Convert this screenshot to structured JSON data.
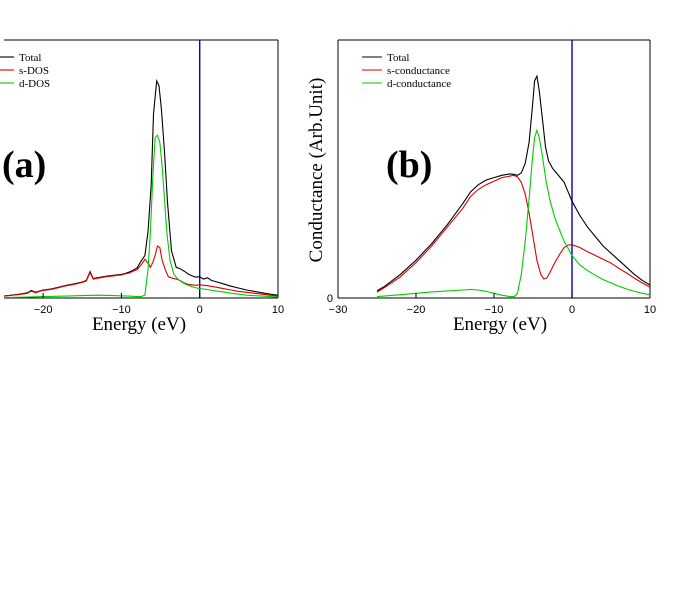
{
  "chart_data": [
    {
      "type": "line",
      "panel_label": "(a)",
      "xlabel": "Energy (eV)",
      "ylabel": "",
      "xlim": [
        -25,
        10
      ],
      "ylim": [
        0,
        100
      ],
      "xticks": [
        "-20",
        "-10",
        "0",
        "10"
      ],
      "yticks": [],
      "fermi_line": {
        "x": 0,
        "color": "#0000cc"
      },
      "legend_position": "top-left",
      "series": [
        {
          "name": "Total",
          "color": "#000000",
          "points": [
            [
              -25,
              0.8
            ],
            [
              -23,
              1.6
            ],
            [
              -22,
              2.2
            ],
            [
              -21.5,
              3.2
            ],
            [
              -21,
              2.4
            ],
            [
              -20,
              3.4
            ],
            [
              -19,
              3.8
            ],
            [
              -18,
              4.6
            ],
            [
              -17,
              5.4
            ],
            [
              -16,
              6
            ],
            [
              -15,
              6.8
            ],
            [
              -14.5,
              7.4
            ],
            [
              -14,
              11.2
            ],
            [
              -13.6,
              8.2
            ],
            [
              -13,
              8.6
            ],
            [
              -12,
              9.2
            ],
            [
              -11,
              9.6
            ],
            [
              -10,
              10
            ],
            [
              -9.5,
              10.4
            ],
            [
              -9,
              11
            ],
            [
              -8.5,
              11.8
            ],
            [
              -8,
              12.8
            ],
            [
              -7.5,
              15.6
            ],
            [
              -7,
              18
            ],
            [
              -6.6,
              28
            ],
            [
              -6.2,
              48
            ],
            [
              -5.9,
              78
            ],
            [
              -5.5,
              92
            ],
            [
              -5.2,
              90
            ],
            [
              -4.9,
              80
            ],
            [
              -4.5,
              62
            ],
            [
              -4.1,
              40
            ],
            [
              -3.6,
              20
            ],
            [
              -3,
              13
            ],
            [
              -2.5,
              12.4
            ],
            [
              -2,
              11.4
            ],
            [
              -1.5,
              10.2
            ],
            [
              -1,
              9.4
            ],
            [
              -0.5,
              8.8
            ],
            [
              0,
              9
            ],
            [
              0.5,
              8
            ],
            [
              1,
              8.6
            ],
            [
              1.5,
              7.4
            ],
            [
              2,
              7
            ],
            [
              3,
              6
            ],
            [
              4,
              5
            ],
            [
              5,
              4.2
            ],
            [
              6,
              3.4
            ],
            [
              7,
              2.8
            ],
            [
              8,
              2.2
            ],
            [
              9,
              1.6
            ],
            [
              10,
              1.2
            ]
          ]
        },
        {
          "name": "s-DOS",
          "color": "#dd0000",
          "points": [
            [
              -25,
              0.8
            ],
            [
              -23,
              1.5
            ],
            [
              -22,
              2
            ],
            [
              -21.5,
              3
            ],
            [
              -21,
              2.2
            ],
            [
              -20,
              3.2
            ],
            [
              -19,
              3.6
            ],
            [
              -18,
              4.4
            ],
            [
              -17,
              5.2
            ],
            [
              -16,
              5.8
            ],
            [
              -15,
              6.6
            ],
            [
              -14.5,
              7.2
            ],
            [
              -14,
              10.8
            ],
            [
              -13.6,
              8
            ],
            [
              -13,
              8.4
            ],
            [
              -12,
              9
            ],
            [
              -11,
              9.4
            ],
            [
              -10,
              9.8
            ],
            [
              -9.5,
              10.2
            ],
            [
              -9,
              10.6
            ],
            [
              -8.5,
              11.4
            ],
            [
              -8,
              12
            ],
            [
              -7.5,
              14
            ],
            [
              -7,
              16.4
            ],
            [
              -6.6,
              14.8
            ],
            [
              -6.3,
              13
            ],
            [
              -6,
              15
            ],
            [
              -5.7,
              18
            ],
            [
              -5.4,
              22
            ],
            [
              -5.1,
              21.4
            ],
            [
              -4.8,
              16
            ],
            [
              -4.4,
              12
            ],
            [
              -4,
              9
            ],
            [
              -3.5,
              8.4
            ],
            [
              -3,
              8
            ],
            [
              -2.5,
              7.4
            ],
            [
              -2,
              6.4
            ],
            [
              -1.5,
              5.8
            ],
            [
              -1,
              5.6
            ],
            [
              -0.5,
              5.4
            ],
            [
              0,
              5.6
            ],
            [
              1,
              5.2
            ],
            [
              2,
              4.6
            ],
            [
              3,
              4
            ],
            [
              4,
              3.4
            ],
            [
              5,
              2.8
            ],
            [
              6,
              2.4
            ],
            [
              7,
              2
            ],
            [
              8,
              1.6
            ],
            [
              9,
              1.2
            ],
            [
              10,
              0.8
            ]
          ]
        },
        {
          "name": "d-DOS",
          "color": "#00cc00",
          "points": [
            [
              -25,
              0.2
            ],
            [
              -22,
              0.4
            ],
            [
              -20,
              0.6
            ],
            [
              -17,
              0.8
            ],
            [
              -15,
              1
            ],
            [
              -13,
              1.2
            ],
            [
              -11,
              1
            ],
            [
              -9,
              0.8
            ],
            [
              -8,
              0.6
            ],
            [
              -7.5,
              0.6
            ],
            [
              -7,
              1.2
            ],
            [
              -6.6,
              12
            ],
            [
              -6.3,
              28
            ],
            [
              -6,
              50
            ],
            [
              -5.7,
              68
            ],
            [
              -5.4,
              69
            ],
            [
              -5.1,
              66
            ],
            [
              -4.8,
              56
            ],
            [
              -4.5,
              42
            ],
            [
              -4.2,
              28
            ],
            [
              -3.8,
              16
            ],
            [
              -3.3,
              10
            ],
            [
              -2.8,
              8
            ],
            [
              -2.3,
              6.8
            ],
            [
              -1.8,
              5.8
            ],
            [
              -1.3,
              5.2
            ],
            [
              -0.8,
              4.6
            ],
            [
              -0.3,
              4.2
            ],
            [
              0,
              4
            ],
            [
              1,
              3.6
            ],
            [
              2,
              3
            ],
            [
              3,
              2.6
            ],
            [
              4,
              2
            ],
            [
              5,
              1.6
            ],
            [
              6,
              1.2
            ],
            [
              8,
              0.8
            ],
            [
              10,
              0.4
            ]
          ]
        }
      ]
    },
    {
      "type": "line",
      "panel_label": "(b)",
      "xlabel": "Energy (eV)",
      "ylabel": "Conductance (Arb.Unit)",
      "xlim": [
        -30,
        10
      ],
      "ylim": [
        0,
        100
      ],
      "xticks": [
        "-30",
        "-20",
        "-10",
        "0",
        "10"
      ],
      "yticks": [
        "0"
      ],
      "fermi_line": {
        "x": 0,
        "color": "#0000cc"
      },
      "legend_position": "top-left",
      "series": [
        {
          "name": "Total",
          "color": "#000000",
          "points": [
            [
              -25,
              3
            ],
            [
              -24,
              5
            ],
            [
              -22,
              10
            ],
            [
              -20,
              16
            ],
            [
              -18,
              23
            ],
            [
              -16,
              31
            ],
            [
              -14,
              40
            ],
            [
              -13,
              45
            ],
            [
              -12,
              48
            ],
            [
              -11,
              50
            ],
            [
              -10,
              51
            ],
            [
              -9,
              52
            ],
            [
              -8,
              52.6
            ],
            [
              -7.5,
              52.4
            ],
            [
              -7,
              52
            ],
            [
              -6.5,
              53
            ],
            [
              -6,
              57
            ],
            [
              -5.5,
              66
            ],
            [
              -5.1,
              80
            ],
            [
              -4.8,
              92
            ],
            [
              -4.5,
              94
            ],
            [
              -4.2,
              88
            ],
            [
              -3.8,
              76
            ],
            [
              -3.4,
              64
            ],
            [
              -3,
              58
            ],
            [
              -2.5,
              55
            ],
            [
              -2,
              53
            ],
            [
              -1.5,
              51
            ],
            [
              -1,
              49
            ],
            [
              -0.5,
              45
            ],
            [
              0,
              41
            ],
            [
              1,
              35
            ],
            [
              2,
              30
            ],
            [
              3,
              26
            ],
            [
              4,
              22
            ],
            [
              5,
              19
            ],
            [
              6,
              16
            ],
            [
              7,
              13
            ],
            [
              8,
              10
            ],
            [
              9,
              7.5
            ],
            [
              10,
              5.5
            ]
          ]
        },
        {
          "name": "s-conductance",
          "color": "#dd0000",
          "points": [
            [
              -25,
              2.5
            ],
            [
              -24,
              4.5
            ],
            [
              -22,
              9
            ],
            [
              -20,
              15
            ],
            [
              -18,
              22
            ],
            [
              -16,
              30
            ],
            [
              -14,
              38
            ],
            [
              -13,
              43
            ],
            [
              -12,
              46
            ],
            [
              -11,
              48
            ],
            [
              -10,
              49.5
            ],
            [
              -9,
              51
            ],
            [
              -8,
              51.6
            ],
            [
              -7.5,
              52
            ],
            [
              -7,
              51.4
            ],
            [
              -6.5,
              49
            ],
            [
              -6,
              44
            ],
            [
              -5.5,
              36
            ],
            [
              -5,
              26
            ],
            [
              -4.5,
              16
            ],
            [
              -4,
              10
            ],
            [
              -3.6,
              8
            ],
            [
              -3.2,
              8.6
            ],
            [
              -2.8,
              11
            ],
            [
              -2.2,
              15
            ],
            [
              -1.5,
              19
            ],
            [
              -1,
              21.4
            ],
            [
              -0.5,
              22.4
            ],
            [
              0,
              22.6
            ],
            [
              1,
              21.4
            ],
            [
              2,
              19.6
            ],
            [
              3,
              18
            ],
            [
              4,
              16.4
            ],
            [
              5,
              14.8
            ],
            [
              6,
              12.6
            ],
            [
              7,
              10.6
            ],
            [
              8,
              8.4
            ],
            [
              9,
              6.4
            ],
            [
              10,
              4.6
            ]
          ]
        },
        {
          "name": "d-conductance",
          "color": "#00cc00",
          "points": [
            [
              -25,
              0.6
            ],
            [
              -22,
              1.4
            ],
            [
              -20,
              2
            ],
            [
              -18,
              2.6
            ],
            [
              -16,
              3
            ],
            [
              -14,
              3.4
            ],
            [
              -13,
              3.6
            ],
            [
              -12,
              3.4
            ],
            [
              -11,
              2.8
            ],
            [
              -10,
              2
            ],
            [
              -9,
              1.2
            ],
            [
              -8,
              0.6
            ],
            [
              -7.4,
              0.6
            ],
            [
              -7,
              2
            ],
            [
              -6.5,
              10
            ],
            [
              -6,
              24
            ],
            [
              -5.5,
              42
            ],
            [
              -5.1,
              58
            ],
            [
              -4.8,
              68
            ],
            [
              -4.5,
              71
            ],
            [
              -4.2,
              68
            ],
            [
              -3.8,
              60
            ],
            [
              -3.3,
              49
            ],
            [
              -2.8,
              41
            ],
            [
              -2.2,
              34
            ],
            [
              -1.5,
              28
            ],
            [
              -1,
              24
            ],
            [
              -0.5,
              21
            ],
            [
              0,
              18
            ],
            [
              1,
              14
            ],
            [
              2,
              11.6
            ],
            [
              3,
              9.6
            ],
            [
              4,
              7.8
            ],
            [
              5,
              6.4
            ],
            [
              6,
              5
            ],
            [
              7,
              3.8
            ],
            [
              8,
              2.8
            ],
            [
              9,
              2
            ],
            [
              10,
              1.4
            ]
          ]
        }
      ]
    }
  ]
}
